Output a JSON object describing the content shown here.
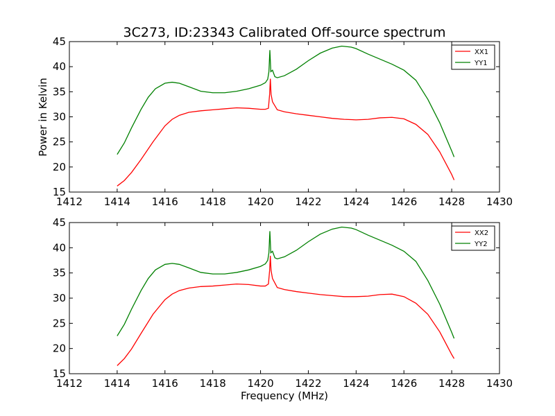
{
  "chart_data": {
    "type": "line",
    "title": "3C273, ID:23343 Calibrated Off-source spectrum",
    "xlabel": "Frequency (MHz)",
    "ylabel": "Power in Kelvin",
    "xlim": [
      1412,
      1430
    ],
    "ylim": [
      15,
      45
    ],
    "xticks": [
      1412,
      1414,
      1416,
      1418,
      1420,
      1422,
      1424,
      1426,
      1428,
      1430
    ],
    "yticks": [
      15,
      20,
      25,
      30,
      35,
      40,
      45
    ],
    "grid": false,
    "legend_position": "top-right",
    "colors": {
      "red": "#ff0000",
      "green": "#008000"
    },
    "panels": [
      {
        "series": [
          {
            "name": "XX1",
            "color": "#ff0000",
            "points": [
              [
                1414.0,
                16.2
              ],
              [
                1414.3,
                17.3
              ],
              [
                1414.6,
                18.9
              ],
              [
                1415.0,
                21.5
              ],
              [
                1415.5,
                25.0
              ],
              [
                1416.0,
                28.2
              ],
              [
                1416.3,
                29.5
              ],
              [
                1416.6,
                30.3
              ],
              [
                1417.0,
                30.9
              ],
              [
                1417.5,
                31.2
              ],
              [
                1418.0,
                31.4
              ],
              [
                1418.5,
                31.6
              ],
              [
                1419.0,
                31.8
              ],
              [
                1419.5,
                31.7
              ],
              [
                1420.0,
                31.5
              ],
              [
                1420.2,
                31.5
              ],
              [
                1420.33,
                31.7
              ],
              [
                1420.38,
                34.5
              ],
              [
                1420.41,
                37.6
              ],
              [
                1420.44,
                34.5
              ],
              [
                1420.5,
                33.0
              ],
              [
                1420.6,
                32.2
              ],
              [
                1420.7,
                31.4
              ],
              [
                1421.0,
                31.0
              ],
              [
                1421.5,
                30.6
              ],
              [
                1422.0,
                30.3
              ],
              [
                1422.5,
                30.0
              ],
              [
                1423.0,
                29.7
              ],
              [
                1423.5,
                29.5
              ],
              [
                1424.0,
                29.4
              ],
              [
                1424.5,
                29.5
              ],
              [
                1425.0,
                29.8
              ],
              [
                1425.5,
                29.9
              ],
              [
                1426.0,
                29.6
              ],
              [
                1426.5,
                28.5
              ],
              [
                1427.0,
                26.5
              ],
              [
                1427.5,
                23.0
              ],
              [
                1428.0,
                18.5
              ],
              [
                1428.1,
                17.4
              ]
            ]
          },
          {
            "name": "YY1",
            "color": "#008000",
            "points": [
              [
                1414.0,
                22.5
              ],
              [
                1414.3,
                24.8
              ],
              [
                1414.6,
                27.8
              ],
              [
                1415.0,
                31.5
              ],
              [
                1415.3,
                33.9
              ],
              [
                1415.6,
                35.6
              ],
              [
                1416.0,
                36.7
              ],
              [
                1416.3,
                36.9
              ],
              [
                1416.6,
                36.7
              ],
              [
                1417.0,
                36.0
              ],
              [
                1417.5,
                35.1
              ],
              [
                1418.0,
                34.8
              ],
              [
                1418.5,
                34.8
              ],
              [
                1419.0,
                35.1
              ],
              [
                1419.5,
                35.6
              ],
              [
                1420.0,
                36.3
              ],
              [
                1420.2,
                36.8
              ],
              [
                1420.3,
                37.5
              ],
              [
                1420.35,
                39.0
              ],
              [
                1420.39,
                43.3
              ],
              [
                1420.43,
                39.0
              ],
              [
                1420.5,
                39.3
              ],
              [
                1420.6,
                38.0
              ],
              [
                1420.7,
                37.8
              ],
              [
                1421.0,
                38.2
              ],
              [
                1421.5,
                39.5
              ],
              [
                1422.0,
                41.2
              ],
              [
                1422.5,
                42.7
              ],
              [
                1423.0,
                43.7
              ],
              [
                1423.4,
                44.1
              ],
              [
                1423.8,
                43.9
              ],
              [
                1424.0,
                43.6
              ],
              [
                1424.5,
                42.5
              ],
              [
                1425.0,
                41.5
              ],
              [
                1425.5,
                40.5
              ],
              [
                1426.0,
                39.3
              ],
              [
                1426.5,
                37.3
              ],
              [
                1427.0,
                33.5
              ],
              [
                1427.5,
                28.8
              ],
              [
                1428.0,
                23.2
              ],
              [
                1428.1,
                22.0
              ]
            ]
          }
        ]
      },
      {
        "series": [
          {
            "name": "XX2",
            "color": "#ff0000",
            "points": [
              [
                1414.0,
                16.6
              ],
              [
                1414.3,
                18.0
              ],
              [
                1414.6,
                19.9
              ],
              [
                1415.0,
                23.0
              ],
              [
                1415.5,
                26.8
              ],
              [
                1416.0,
                29.7
              ],
              [
                1416.3,
                30.8
              ],
              [
                1416.6,
                31.5
              ],
              [
                1417.0,
                32.0
              ],
              [
                1417.5,
                32.3
              ],
              [
                1418.0,
                32.4
              ],
              [
                1418.5,
                32.6
              ],
              [
                1419.0,
                32.8
              ],
              [
                1419.5,
                32.7
              ],
              [
                1420.0,
                32.4
              ],
              [
                1420.2,
                32.4
              ],
              [
                1420.33,
                32.8
              ],
              [
                1420.38,
                35.5
              ],
              [
                1420.41,
                38.4
              ],
              [
                1420.44,
                35.5
              ],
              [
                1420.5,
                33.9
              ],
              [
                1420.6,
                33.0
              ],
              [
                1420.7,
                32.1
              ],
              [
                1421.0,
                31.7
              ],
              [
                1421.5,
                31.3
              ],
              [
                1422.0,
                31.0
              ],
              [
                1422.5,
                30.7
              ],
              [
                1423.0,
                30.5
              ],
              [
                1423.5,
                30.3
              ],
              [
                1424.0,
                30.3
              ],
              [
                1424.5,
                30.4
              ],
              [
                1425.0,
                30.7
              ],
              [
                1425.5,
                30.8
              ],
              [
                1426.0,
                30.3
              ],
              [
                1426.5,
                29.0
              ],
              [
                1427.0,
                26.8
              ],
              [
                1427.5,
                23.3
              ],
              [
                1428.0,
                18.8
              ],
              [
                1428.1,
                18.0
              ]
            ]
          },
          {
            "name": "YY2",
            "color": "#008000",
            "points": [
              [
                1414.0,
                22.5
              ],
              [
                1414.3,
                24.8
              ],
              [
                1414.6,
                27.8
              ],
              [
                1415.0,
                31.5
              ],
              [
                1415.3,
                33.9
              ],
              [
                1415.6,
                35.6
              ],
              [
                1416.0,
                36.7
              ],
              [
                1416.3,
                36.9
              ],
              [
                1416.6,
                36.7
              ],
              [
                1417.0,
                36.0
              ],
              [
                1417.5,
                35.1
              ],
              [
                1418.0,
                34.8
              ],
              [
                1418.5,
                34.8
              ],
              [
                1419.0,
                35.1
              ],
              [
                1419.5,
                35.6
              ],
              [
                1420.0,
                36.3
              ],
              [
                1420.2,
                36.8
              ],
              [
                1420.3,
                37.5
              ],
              [
                1420.35,
                39.0
              ],
              [
                1420.39,
                43.3
              ],
              [
                1420.43,
                39.0
              ],
              [
                1420.5,
                39.3
              ],
              [
                1420.6,
                38.0
              ],
              [
                1420.7,
                37.8
              ],
              [
                1421.0,
                38.2
              ],
              [
                1421.5,
                39.5
              ],
              [
                1422.0,
                41.2
              ],
              [
                1422.5,
                42.7
              ],
              [
                1423.0,
                43.7
              ],
              [
                1423.4,
                44.1
              ],
              [
                1423.8,
                43.9
              ],
              [
                1424.0,
                43.6
              ],
              [
                1424.5,
                42.5
              ],
              [
                1425.0,
                41.5
              ],
              [
                1425.5,
                40.5
              ],
              [
                1426.0,
                39.3
              ],
              [
                1426.5,
                37.3
              ],
              [
                1427.0,
                33.5
              ],
              [
                1427.5,
                28.8
              ],
              [
                1428.0,
                23.2
              ],
              [
                1428.1,
                22.0
              ]
            ]
          }
        ]
      }
    ]
  }
}
